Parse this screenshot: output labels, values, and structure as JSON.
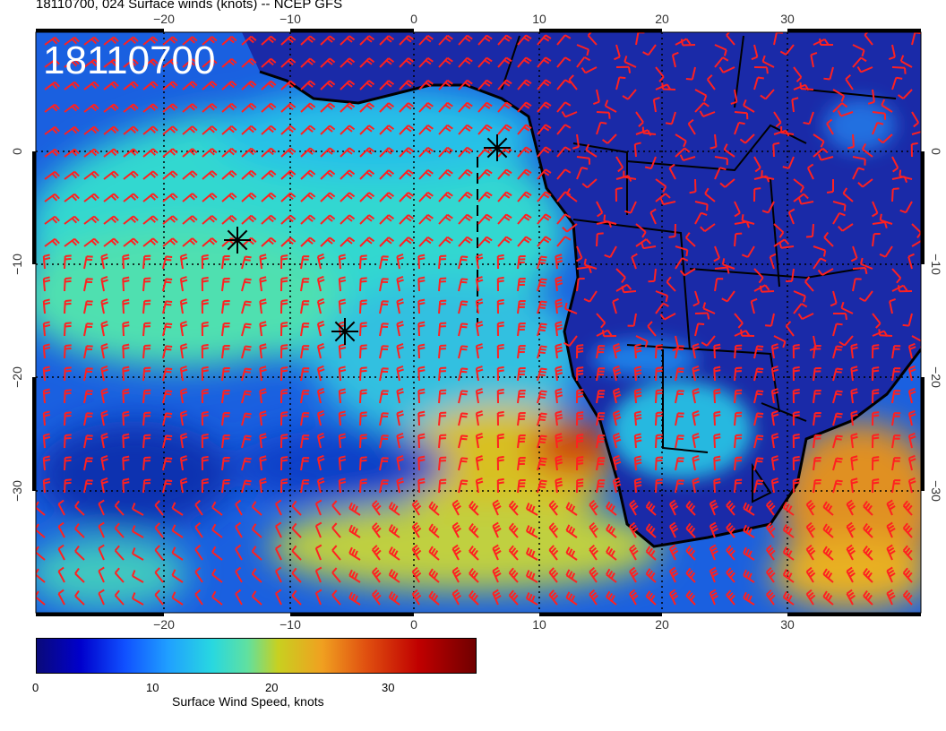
{
  "header": {
    "title": "18110700, 024 Surface winds (knots) -- NCEP GFS"
  },
  "map": {
    "stamp": "18110700",
    "lon_ticks_bottom": [
      "−20",
      "−10",
      "0",
      "10",
      "20",
      "30"
    ],
    "lon_ticks_top": [
      "−20",
      "−10",
      "0",
      "10",
      "20",
      "30"
    ],
    "lat_ticks_left": [
      "0",
      "−10",
      "−20",
      "−30"
    ],
    "lat_ticks_right": [
      "0",
      "−10",
      "−20",
      "−30"
    ],
    "colors": {
      "ocean_base": "#1a66e0",
      "land_base": "#1d2fb0",
      "barb": "#ff2020",
      "coast": "#000000"
    },
    "markers": [
      "star",
      "star",
      "star"
    ]
  },
  "colorbar": {
    "ticks": [
      "0",
      "10",
      "20",
      "30"
    ],
    "label": "Surface Wind Speed, knots",
    "min": 0,
    "max": 38
  }
}
